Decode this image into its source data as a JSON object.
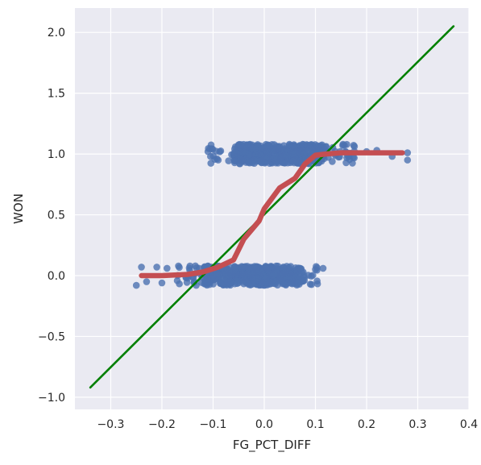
{
  "chart_data": {
    "type": "scatter",
    "title": "",
    "xlabel": "FG_PCT_DIFF",
    "ylabel": "WON",
    "xlim": [
      -0.37,
      0.4
    ],
    "ylim": [
      -1.1,
      2.2
    ],
    "xticks": [
      -0.3,
      -0.2,
      -0.1,
      0.0,
      0.1,
      0.2,
      0.3,
      0.4
    ],
    "xtick_labels": [
      "−0.3",
      "−0.2",
      "−0.1",
      "0.0",
      "0.1",
      "0.2",
      "0.3",
      "0.4"
    ],
    "yticks": [
      -1.0,
      -0.5,
      0.0,
      0.5,
      1.0,
      1.5,
      2.0
    ],
    "ytick_labels": [
      "−1.0",
      "−0.5",
      "0.0",
      "0.5",
      "1.0",
      "1.5",
      "2.0"
    ],
    "grid": true,
    "background_color": "#eaeaf2",
    "series": [
      {
        "kind": "scatter",
        "color": "#4c72b0",
        "clusters": [
          {
            "y_center": 1.0,
            "y_jitter": 0.08,
            "x_range": [
              -0.11,
              0.18
            ],
            "x_dense": [
              -0.06,
              0.12
            ],
            "count": 520
          },
          {
            "y_center": 0.0,
            "y_jitter": 0.08,
            "x_range": [
              -0.17,
              0.11
            ],
            "x_dense": [
              -0.12,
              0.07
            ],
            "count": 520
          }
        ],
        "outliers": [
          {
            "x": -0.11,
            "y": 1.02
          },
          {
            "x": -0.105,
            "y": 0.98
          },
          {
            "x": -0.09,
            "y": 0.95
          },
          {
            "x": 0.2,
            "y": 1.02
          },
          {
            "x": 0.28,
            "y": 1.01
          },
          {
            "x": 0.28,
            "y": 0.95
          },
          {
            "x": 0.25,
            "y": 0.98
          },
          {
            "x": 0.22,
            "y": 1.03
          },
          {
            "x": -0.25,
            "y": -0.08
          },
          {
            "x": -0.24,
            "y": 0.07
          },
          {
            "x": -0.23,
            "y": -0.05
          },
          {
            "x": -0.21,
            "y": 0.07
          },
          {
            "x": -0.2,
            "y": -0.06
          },
          {
            "x": -0.19,
            "y": 0.06
          },
          {
            "x": 0.115,
            "y": 0.06
          },
          {
            "x": 0.09,
            "y": -0.07
          },
          {
            "x": 0.1,
            "y": 0.05
          }
        ]
      },
      {
        "kind": "line",
        "name": "",
        "color": "#008000",
        "x": [
          -0.34,
          0.37
        ],
        "y": [
          -0.92,
          2.05
        ]
      },
      {
        "kind": "line",
        "name": "",
        "color": "#c44e52",
        "x": [
          -0.24,
          -0.2,
          -0.15,
          -0.12,
          -0.09,
          -0.06,
          -0.04,
          -0.01,
          0.0,
          0.03,
          0.06,
          0.08,
          0.1,
          0.12,
          0.15,
          0.2,
          0.27
        ],
        "y": [
          0.0,
          0.0,
          0.01,
          0.03,
          0.07,
          0.13,
          0.3,
          0.45,
          0.55,
          0.72,
          0.8,
          0.92,
          0.99,
          1.0,
          1.01,
          1.01,
          1.01
        ]
      }
    ]
  }
}
